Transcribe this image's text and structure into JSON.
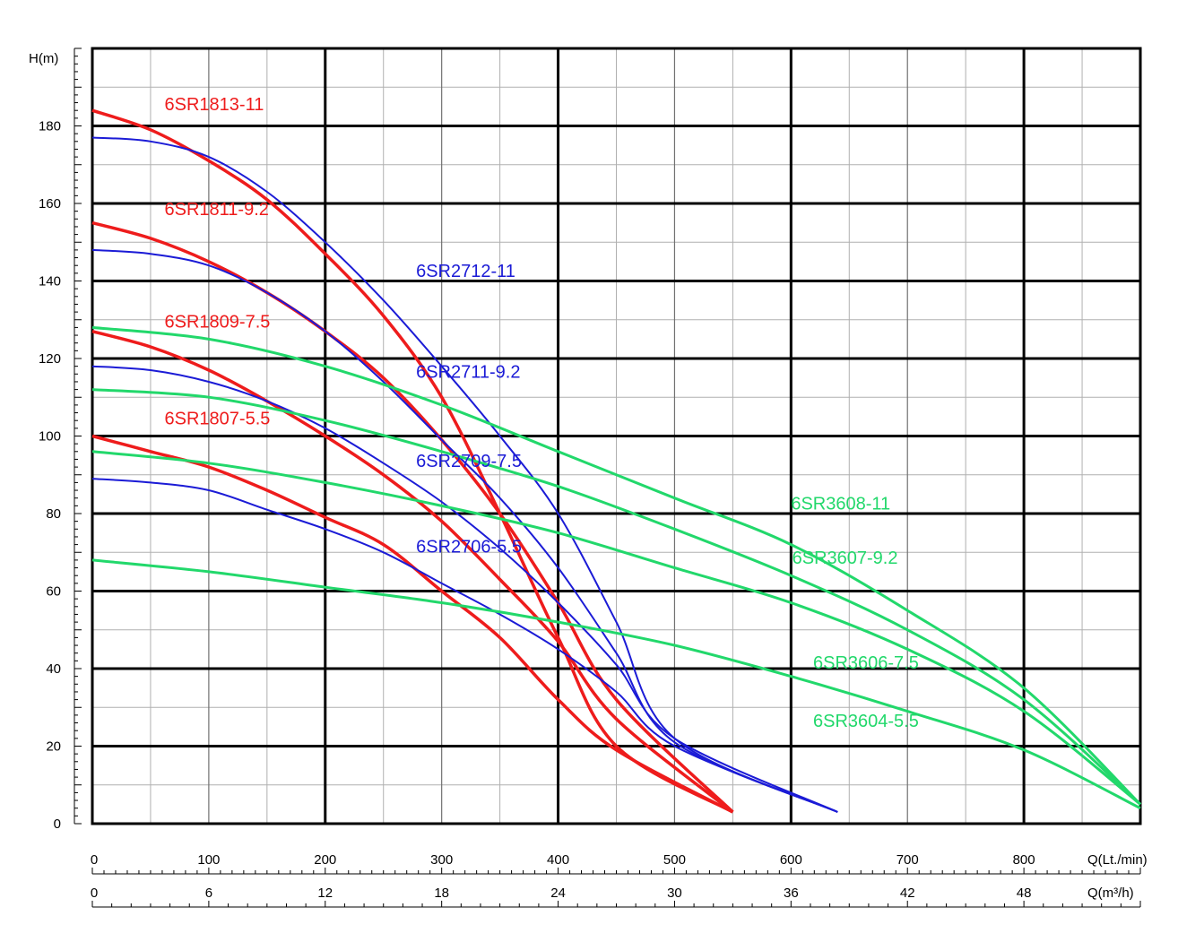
{
  "chart_data": {
    "type": "line",
    "y_axis": {
      "label": "H(m)",
      "ticks": [
        "0",
        "20",
        "40",
        "60",
        "80",
        "100",
        "120",
        "140",
        "160",
        "180"
      ],
      "range": [
        0,
        200
      ]
    },
    "x_axis_flow_lpm": {
      "label": "Q(Lt./min)",
      "ticks": [
        "0",
        "100",
        "200",
        "300",
        "400",
        "500",
        "600",
        "700",
        "800"
      ],
      "range": [
        0,
        900
      ]
    },
    "x_axis_flow_m3h": {
      "label": "Q(m³/h)",
      "ticks": [
        "0",
        "6",
        "12",
        "18",
        "24",
        "30",
        "36",
        "42",
        "48"
      ],
      "range": [
        0,
        54
      ]
    },
    "grid": true,
    "colors": {
      "red": "#ee1c1c",
      "blue": "#1b1bd6",
      "green": "#22d86b",
      "grid": "#000000",
      "minor_grid": "#b0b0b0"
    },
    "series": [
      {
        "name": "6SR1813-11",
        "color": "red",
        "points": [
          [
            0,
            184
          ],
          [
            50,
            179
          ],
          [
            100,
            171
          ],
          [
            150,
            161
          ],
          [
            200,
            147
          ],
          [
            250,
            131
          ],
          [
            300,
            110
          ],
          [
            350,
            80
          ],
          [
            400,
            48
          ],
          [
            450,
            20
          ],
          [
            550,
            3
          ]
        ]
      },
      {
        "name": "6SR1811-9.2",
        "color": "red",
        "points": [
          [
            0,
            155
          ],
          [
            50,
            151
          ],
          [
            100,
            145
          ],
          [
            150,
            137
          ],
          [
            200,
            127
          ],
          [
            250,
            115
          ],
          [
            300,
            99
          ],
          [
            350,
            80
          ],
          [
            400,
            57
          ],
          [
            450,
            32
          ],
          [
            550,
            3
          ]
        ]
      },
      {
        "name": "6SR1809-7.5",
        "color": "red",
        "points": [
          [
            0,
            127
          ],
          [
            50,
            123
          ],
          [
            100,
            117
          ],
          [
            150,
            109
          ],
          [
            200,
            100
          ],
          [
            250,
            90
          ],
          [
            300,
            78
          ],
          [
            350,
            63
          ],
          [
            400,
            47
          ],
          [
            450,
            27
          ],
          [
            550,
            3
          ]
        ]
      },
      {
        "name": "6SR1807-5.5",
        "color": "red",
        "points": [
          [
            0,
            100
          ],
          [
            50,
            96
          ],
          [
            100,
            92
          ],
          [
            150,
            86
          ],
          [
            200,
            79
          ],
          [
            250,
            72
          ],
          [
            300,
            60
          ],
          [
            350,
            48
          ],
          [
            400,
            32
          ],
          [
            450,
            19
          ],
          [
            550,
            3
          ]
        ]
      },
      {
        "name": "6SR2712-11",
        "color": "blue",
        "points": [
          [
            0,
            177
          ],
          [
            50,
            176
          ],
          [
            100,
            172
          ],
          [
            150,
            163
          ],
          [
            200,
            150
          ],
          [
            250,
            135
          ],
          [
            300,
            118
          ],
          [
            350,
            100
          ],
          [
            400,
            80
          ],
          [
            450,
            52
          ],
          [
            500,
            22
          ],
          [
            640,
            3
          ]
        ]
      },
      {
        "name": "6SR2711-9.2",
        "color": "blue",
        "points": [
          [
            0,
            148
          ],
          [
            50,
            147
          ],
          [
            100,
            144
          ],
          [
            150,
            137
          ],
          [
            200,
            127
          ],
          [
            250,
            114
          ],
          [
            300,
            99
          ],
          [
            350,
            84
          ],
          [
            400,
            66
          ],
          [
            450,
            44
          ],
          [
            500,
            21
          ],
          [
            640,
            3
          ]
        ]
      },
      {
        "name": "6SR2709-7.5",
        "color": "blue",
        "points": [
          [
            0,
            118
          ],
          [
            50,
            117
          ],
          [
            100,
            114
          ],
          [
            150,
            109
          ],
          [
            200,
            102
          ],
          [
            250,
            93
          ],
          [
            300,
            83
          ],
          [
            350,
            71
          ],
          [
            400,
            57
          ],
          [
            450,
            41
          ],
          [
            500,
            22
          ],
          [
            640,
            3
          ]
        ]
      },
      {
        "name": "6SR2706-5.5",
        "color": "blue",
        "points": [
          [
            0,
            89
          ],
          [
            50,
            88
          ],
          [
            100,
            86
          ],
          [
            150,
            81
          ],
          [
            200,
            76
          ],
          [
            250,
            70
          ],
          [
            300,
            62
          ],
          [
            350,
            54
          ],
          [
            400,
            45
          ],
          [
            450,
            34
          ],
          [
            500,
            20
          ],
          [
            640,
            3
          ]
        ]
      },
      {
        "name": "6SR3608-11",
        "color": "green",
        "points": [
          [
            0,
            128
          ],
          [
            100,
            125
          ],
          [
            200,
            118
          ],
          [
            300,
            108
          ],
          [
            400,
            96
          ],
          [
            500,
            84
          ],
          [
            600,
            72
          ],
          [
            700,
            55
          ],
          [
            800,
            35
          ],
          [
            900,
            5
          ]
        ]
      },
      {
        "name": "6SR3607-9.2",
        "color": "green",
        "points": [
          [
            0,
            112
          ],
          [
            100,
            110
          ],
          [
            200,
            104
          ],
          [
            300,
            96
          ],
          [
            400,
            87
          ],
          [
            500,
            76
          ],
          [
            600,
            64
          ],
          [
            700,
            50
          ],
          [
            800,
            32
          ],
          [
            900,
            5
          ]
        ]
      },
      {
        "name": "6SR3606-7.5",
        "color": "green",
        "points": [
          [
            0,
            96
          ],
          [
            100,
            93
          ],
          [
            200,
            88
          ],
          [
            300,
            82
          ],
          [
            400,
            75
          ],
          [
            500,
            66
          ],
          [
            600,
            57
          ],
          [
            700,
            45
          ],
          [
            800,
            29
          ],
          [
            900,
            5
          ]
        ]
      },
      {
        "name": "6SR3604-5.5",
        "color": "green",
        "points": [
          [
            0,
            68
          ],
          [
            100,
            65
          ],
          [
            200,
            61
          ],
          [
            300,
            57
          ],
          [
            400,
            52
          ],
          [
            500,
            46
          ],
          [
            600,
            38
          ],
          [
            700,
            29
          ],
          [
            800,
            19
          ],
          [
            900,
            4
          ]
        ]
      }
    ]
  }
}
